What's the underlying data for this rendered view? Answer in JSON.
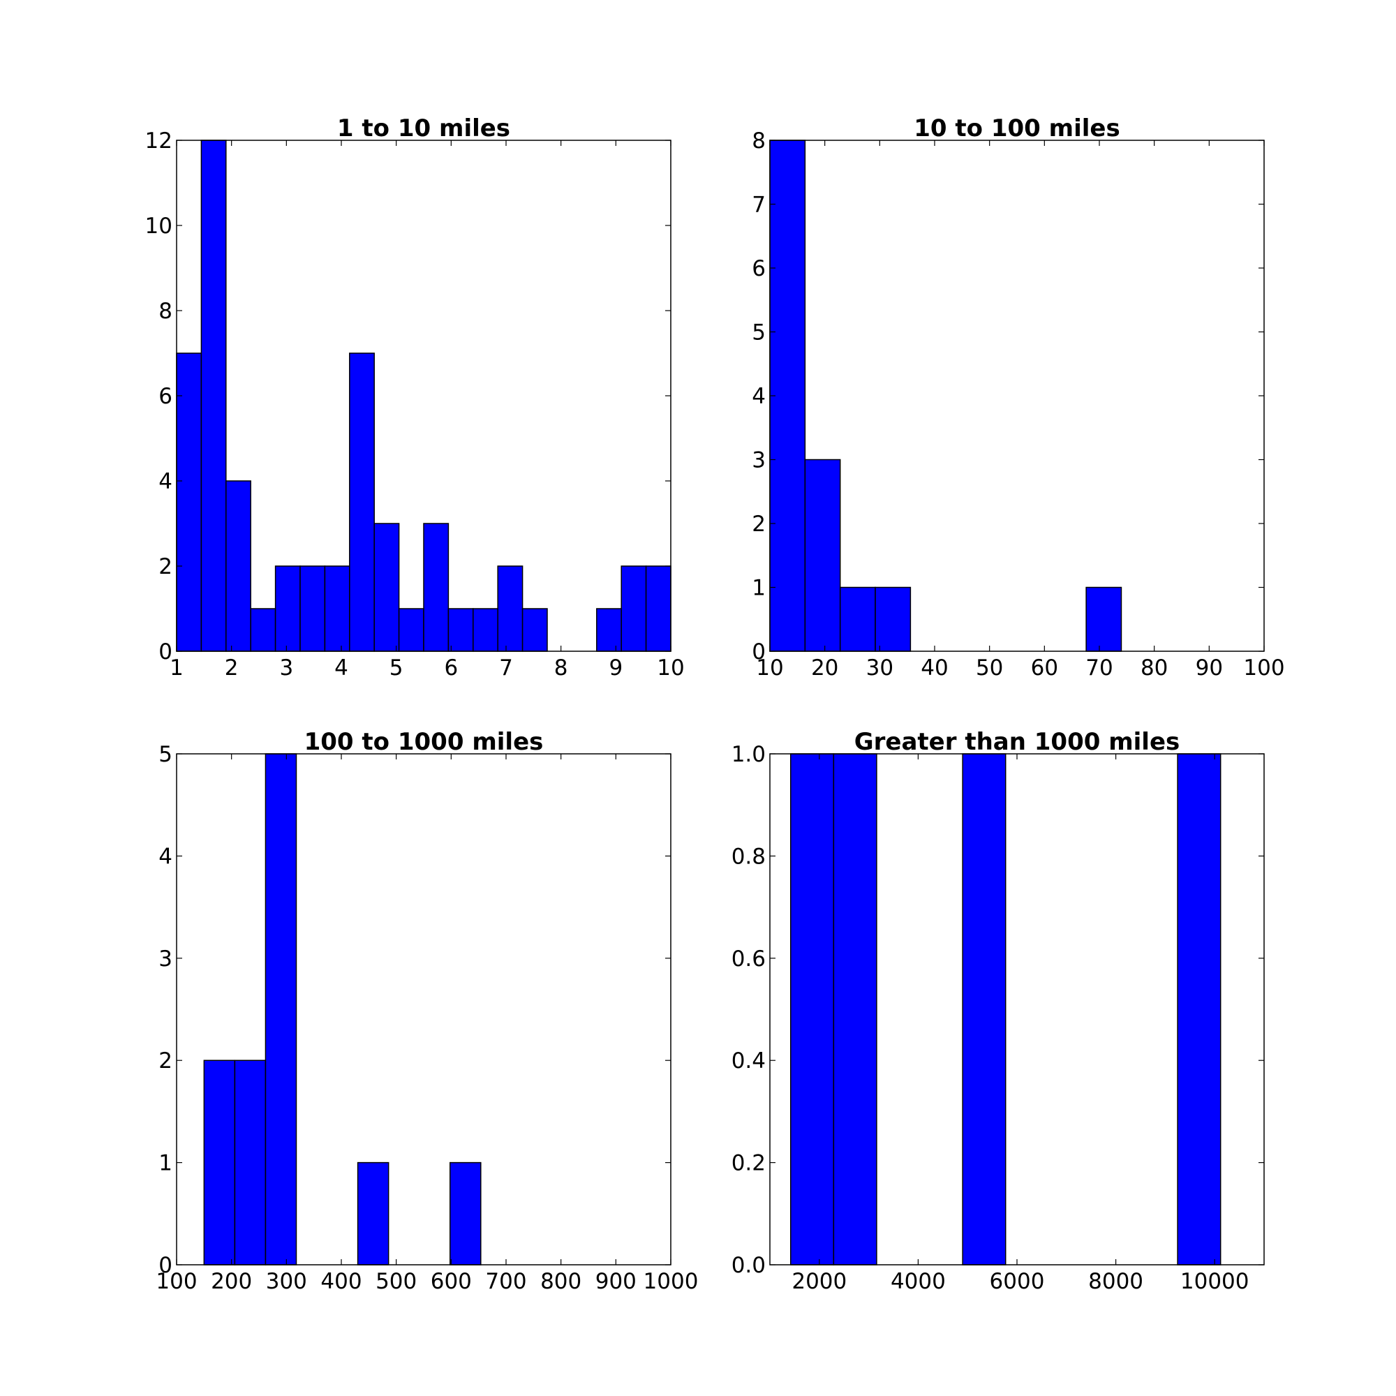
{
  "chart_data": [
    {
      "type": "bar",
      "title": "1 to 10 miles",
      "xlabel": "",
      "ylabel": "",
      "xlim": [
        1,
        10
      ],
      "ylim": [
        0,
        12
      ],
      "xticks": [
        "1",
        "2",
        "3",
        "4",
        "5",
        "6",
        "7",
        "8",
        "9",
        "10"
      ],
      "yticks": [
        "0",
        "2",
        "4",
        "6",
        "8",
        "10",
        "12"
      ],
      "bins": [
        {
          "start": 1.0,
          "end": 1.45,
          "count": 7
        },
        {
          "start": 1.45,
          "end": 1.9,
          "count": 12
        },
        {
          "start": 1.9,
          "end": 2.35,
          "count": 4
        },
        {
          "start": 2.35,
          "end": 2.8,
          "count": 1
        },
        {
          "start": 2.8,
          "end": 3.25,
          "count": 2
        },
        {
          "start": 3.25,
          "end": 3.7,
          "count": 2
        },
        {
          "start": 3.7,
          "end": 4.15,
          "count": 2
        },
        {
          "start": 4.15,
          "end": 4.6,
          "count": 7
        },
        {
          "start": 4.6,
          "end": 5.05,
          "count": 3
        },
        {
          "start": 5.05,
          "end": 5.5,
          "count": 1
        },
        {
          "start": 5.5,
          "end": 5.95,
          "count": 3
        },
        {
          "start": 5.95,
          "end": 6.4,
          "count": 1
        },
        {
          "start": 6.4,
          "end": 6.85,
          "count": 1
        },
        {
          "start": 6.85,
          "end": 7.3,
          "count": 2
        },
        {
          "start": 7.3,
          "end": 7.75,
          "count": 1
        },
        {
          "start": 7.75,
          "end": 8.2,
          "count": 0
        },
        {
          "start": 8.2,
          "end": 8.65,
          "count": 0
        },
        {
          "start": 8.65,
          "end": 9.1,
          "count": 1
        },
        {
          "start": 9.1,
          "end": 9.55,
          "count": 2
        },
        {
          "start": 9.55,
          "end": 10.0,
          "count": 2
        }
      ]
    },
    {
      "type": "bar",
      "title": "10 to 100 miles",
      "xlabel": "",
      "ylabel": "",
      "xlim": [
        10,
        100
      ],
      "ylim": [
        0,
        8
      ],
      "xticks": [
        "10",
        "20",
        "30",
        "40",
        "50",
        "60",
        "70",
        "80",
        "90",
        "100"
      ],
      "yticks": [
        "0",
        "1",
        "2",
        "3",
        "4",
        "5",
        "6",
        "7",
        "8"
      ],
      "bins": [
        {
          "start": 10.0,
          "end": 16.4,
          "count": 8
        },
        {
          "start": 16.4,
          "end": 22.8,
          "count": 3
        },
        {
          "start": 22.8,
          "end": 29.2,
          "count": 1
        },
        {
          "start": 29.2,
          "end": 35.6,
          "count": 1
        },
        {
          "start": 35.6,
          "end": 42.0,
          "count": 0
        },
        {
          "start": 42.0,
          "end": 48.4,
          "count": 0
        },
        {
          "start": 48.4,
          "end": 54.8,
          "count": 0
        },
        {
          "start": 54.8,
          "end": 61.2,
          "count": 0
        },
        {
          "start": 61.2,
          "end": 67.6,
          "count": 0
        },
        {
          "start": 67.6,
          "end": 74.0,
          "count": 1
        }
      ]
    },
    {
      "type": "bar",
      "title": "100 to 1000 miles",
      "xlabel": "",
      "ylabel": "",
      "xlim": [
        100,
        1000
      ],
      "ylim": [
        0,
        5
      ],
      "xticks": [
        "100",
        "200",
        "300",
        "400",
        "500",
        "600",
        "700",
        "800",
        "900",
        "1000"
      ],
      "yticks": [
        "0",
        "1",
        "2",
        "3",
        "4",
        "5"
      ],
      "bins": [
        {
          "start": 150,
          "end": 206,
          "count": 2
        },
        {
          "start": 206,
          "end": 262,
          "count": 2
        },
        {
          "start": 262,
          "end": 318,
          "count": 5
        },
        {
          "start": 318,
          "end": 374,
          "count": 0
        },
        {
          "start": 374,
          "end": 430,
          "count": 0
        },
        {
          "start": 430,
          "end": 486,
          "count": 1
        },
        {
          "start": 486,
          "end": 542,
          "count": 0
        },
        {
          "start": 542,
          "end": 598,
          "count": 0
        },
        {
          "start": 598,
          "end": 654,
          "count": 1
        }
      ]
    },
    {
      "type": "bar",
      "title": "Greater than 1000 miles",
      "xlabel": "",
      "ylabel": "",
      "xlim": [
        1000,
        11000
      ],
      "ylim": [
        0,
        1.0
      ],
      "xticks": [
        {
          "value": 2000,
          "label": "2000"
        },
        {
          "value": 4000,
          "label": "4000"
        },
        {
          "value": 6000,
          "label": "6000"
        },
        {
          "value": 8000,
          "label": "8000"
        },
        {
          "value": 10000,
          "label": "10000"
        }
      ],
      "yticks": [
        "0.0",
        "0.2",
        "0.4",
        "0.6",
        "0.8",
        "1.0"
      ],
      "bins": [
        {
          "start": 1420,
          "end": 2290,
          "count": 1
        },
        {
          "start": 2290,
          "end": 3160,
          "count": 1
        },
        {
          "start": 3160,
          "end": 4030,
          "count": 0
        },
        {
          "start": 4030,
          "end": 4900,
          "count": 0
        },
        {
          "start": 4900,
          "end": 5770,
          "count": 1
        },
        {
          "start": 5770,
          "end": 6640,
          "count": 0
        },
        {
          "start": 6640,
          "end": 7510,
          "count": 0
        },
        {
          "start": 7510,
          "end": 8380,
          "count": 0
        },
        {
          "start": 8380,
          "end": 9250,
          "count": 0
        },
        {
          "start": 9250,
          "end": 10120,
          "count": 1
        }
      ]
    }
  ],
  "colors": {
    "bar_fill": "#0000ff",
    "bar_edge": "#000000"
  }
}
